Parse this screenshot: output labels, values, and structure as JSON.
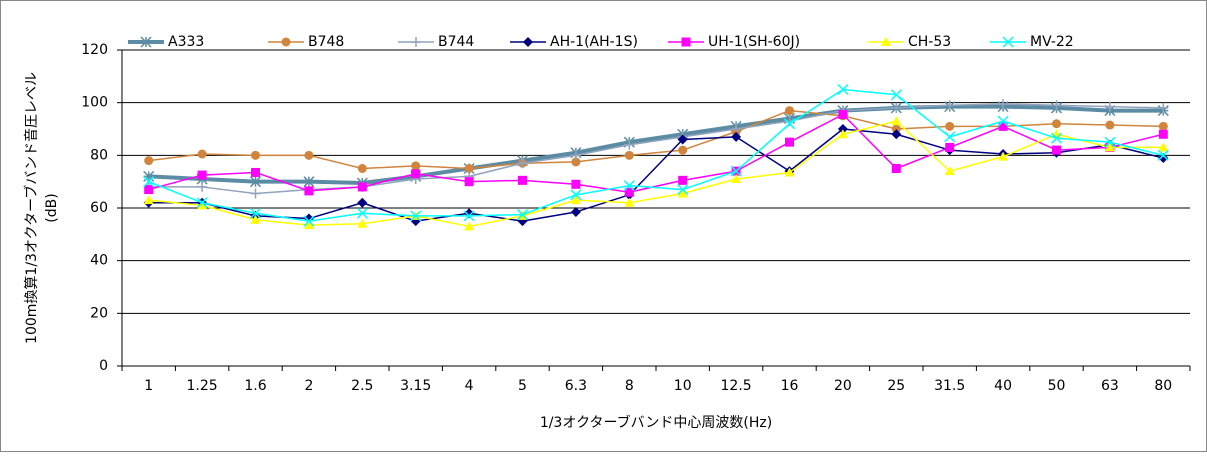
{
  "chart_data": {
    "type": "line",
    "ylabel": [
      "100m換算1/3オクターブバンド音圧レベル",
      "(dB)"
    ],
    "xlabel": "1/3オクターブバンド中心周波数(Hz)",
    "categories": [
      "1",
      "1.25",
      "1.6",
      "2",
      "2.5",
      "3.15",
      "4",
      "5",
      "6.3",
      "8",
      "10",
      "12.5",
      "16",
      "20",
      "25",
      "31.5",
      "40",
      "50",
      "63",
      "80"
    ],
    "ylim": [
      0,
      120
    ],
    "yticks": [
      0,
      20,
      40,
      60,
      80,
      100,
      120
    ],
    "grid": true,
    "legend": "top",
    "series": [
      {
        "name": "A333",
        "color": "#5b8ca3",
        "marker": "asterisk",
        "line_width": 4,
        "values": [
          72,
          71,
          70,
          70,
          69.5,
          72,
          75,
          78,
          81,
          85,
          88,
          91,
          94,
          97,
          98,
          98.5,
          98.5,
          98,
          97,
          97
        ]
      },
      {
        "name": "B748",
        "color": "#d0843c",
        "marker": "circle",
        "line_width": 1.5,
        "values": [
          78,
          80.5,
          80,
          80,
          75,
          76,
          75,
          77,
          77.5,
          80,
          82,
          89,
          97,
          95,
          90,
          91,
          91,
          92,
          91.5,
          91
        ]
      },
      {
        "name": "B744",
        "color": "#91a3bd",
        "marker": "plus",
        "line_width": 1.5,
        "values": [
          68,
          68,
          65.5,
          67,
          68,
          71,
          72,
          77,
          80,
          84,
          87,
          90,
          93,
          97,
          98,
          99,
          99.5,
          99,
          98.5,
          98
        ]
      },
      {
        "name": "AH-1(AH-1S)",
        "color": "#000080",
        "marker": "diamond",
        "line_width": 1.5,
        "values": [
          62,
          62,
          57,
          56,
          62,
          55,
          58,
          55,
          58.5,
          65,
          86,
          87,
          74,
          90,
          88,
          82,
          80.5,
          81,
          84,
          79
        ]
      },
      {
        "name": "UH-1(SH-60J)",
        "color": "#ff00ff",
        "marker": "square",
        "line_width": 1.5,
        "values": [
          67,
          72.5,
          73.5,
          66.5,
          68,
          73,
          70,
          70.5,
          69,
          66,
          70.5,
          74,
          85,
          95.5,
          75,
          83,
          91,
          82,
          83,
          88
        ]
      },
      {
        "name": "CH-53",
        "color": "#ffff00",
        "marker": "triangle",
        "line_width": 1.5,
        "values": [
          63,
          61,
          55.5,
          53.5,
          54,
          57,
          53,
          57,
          63,
          62,
          65.5,
          71,
          73.5,
          88,
          93,
          74,
          79.5,
          88,
          83,
          83
        ]
      },
      {
        "name": "MV-22",
        "color": "#00ffff",
        "marker": "x",
        "line_width": 1.5,
        "values": [
          70,
          62,
          58,
          55,
          58,
          57,
          57,
          57.5,
          65,
          68.5,
          67,
          74,
          92,
          105,
          103,
          87,
          93,
          86.5,
          85,
          80
        ]
      }
    ]
  }
}
